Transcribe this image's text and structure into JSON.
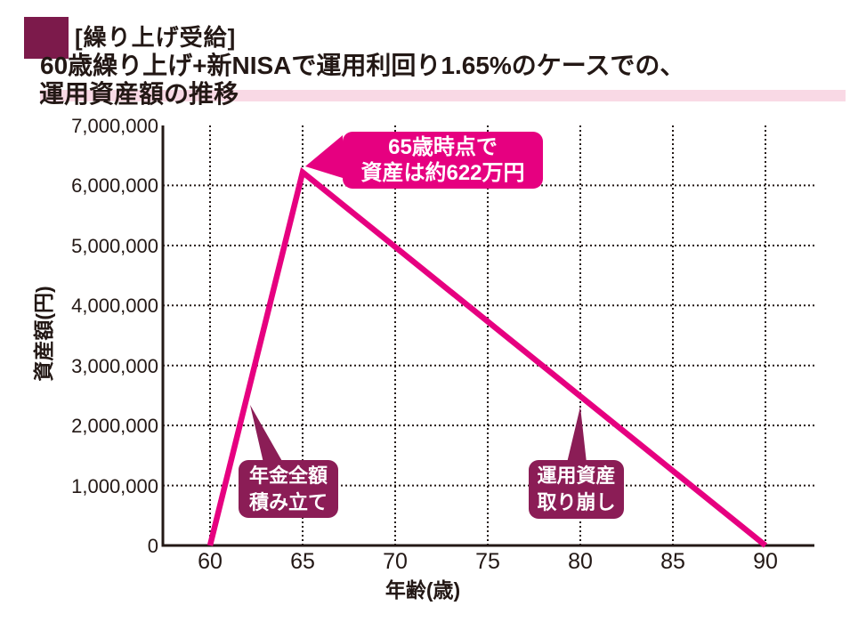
{
  "header": {
    "tag": "[繰り上げ受給]",
    "title_line1": "60歳繰り上げ+新NISAで運用利回り1.65%のケースでの、",
    "title_line2": "運用資産額の推移"
  },
  "colors": {
    "magenta": "#e60080",
    "plum": "#8b1d56",
    "tag_square": "#7c1a4b",
    "band_pink": "#f9d9e5",
    "axis": "#231815"
  },
  "chart_data": {
    "type": "line",
    "title": "60歳繰り上げ+新NISAで運用利回り1.65%のケースでの、運用資産額の推移",
    "xlabel": "年齢(歳)",
    "ylabel": "資産額(円)",
    "xlim": [
      57.5,
      92.6
    ],
    "ylim": [
      0,
      7000000
    ],
    "grid": "dotted",
    "x_ticks": [
      {
        "value": 60,
        "label": "60"
      },
      {
        "value": 65,
        "label": "65"
      },
      {
        "value": 70,
        "label": "70"
      },
      {
        "value": 75,
        "label": "75"
      },
      {
        "value": 80,
        "label": "80"
      },
      {
        "value": 85,
        "label": "85"
      },
      {
        "value": 90,
        "label": "90"
      }
    ],
    "y_ticks": [
      {
        "value": 0,
        "label": "0"
      },
      {
        "value": 1000000,
        "label": "1,000,000"
      },
      {
        "value": 2000000,
        "label": "2,000,000"
      },
      {
        "value": 3000000,
        "label": "3,000,000"
      },
      {
        "value": 4000000,
        "label": "4,000,000"
      },
      {
        "value": 5000000,
        "label": "5,000,000"
      },
      {
        "value": 6000000,
        "label": "6,000,000"
      },
      {
        "value": 7000000,
        "label": "7,000,000"
      }
    ],
    "series": [
      {
        "name": "運用資産額",
        "points": [
          {
            "x": 60,
            "y": 0
          },
          {
            "x": 65,
            "y": 6220000
          },
          {
            "x": 90,
            "y": 0
          }
        ]
      }
    ],
    "annotations": [
      {
        "lines": [
          "65歳時点で",
          "資産は約622万円"
        ],
        "style": "magenta",
        "anchor": "65歳のピーク"
      },
      {
        "lines": [
          "年金全額",
          "積み立て"
        ],
        "style": "plum",
        "anchor": "上昇区間(60〜65歳)"
      },
      {
        "lines": [
          "運用資産",
          "取り崩し"
        ],
        "style": "plum",
        "anchor": "下降区間(65〜90歳)"
      }
    ]
  }
}
